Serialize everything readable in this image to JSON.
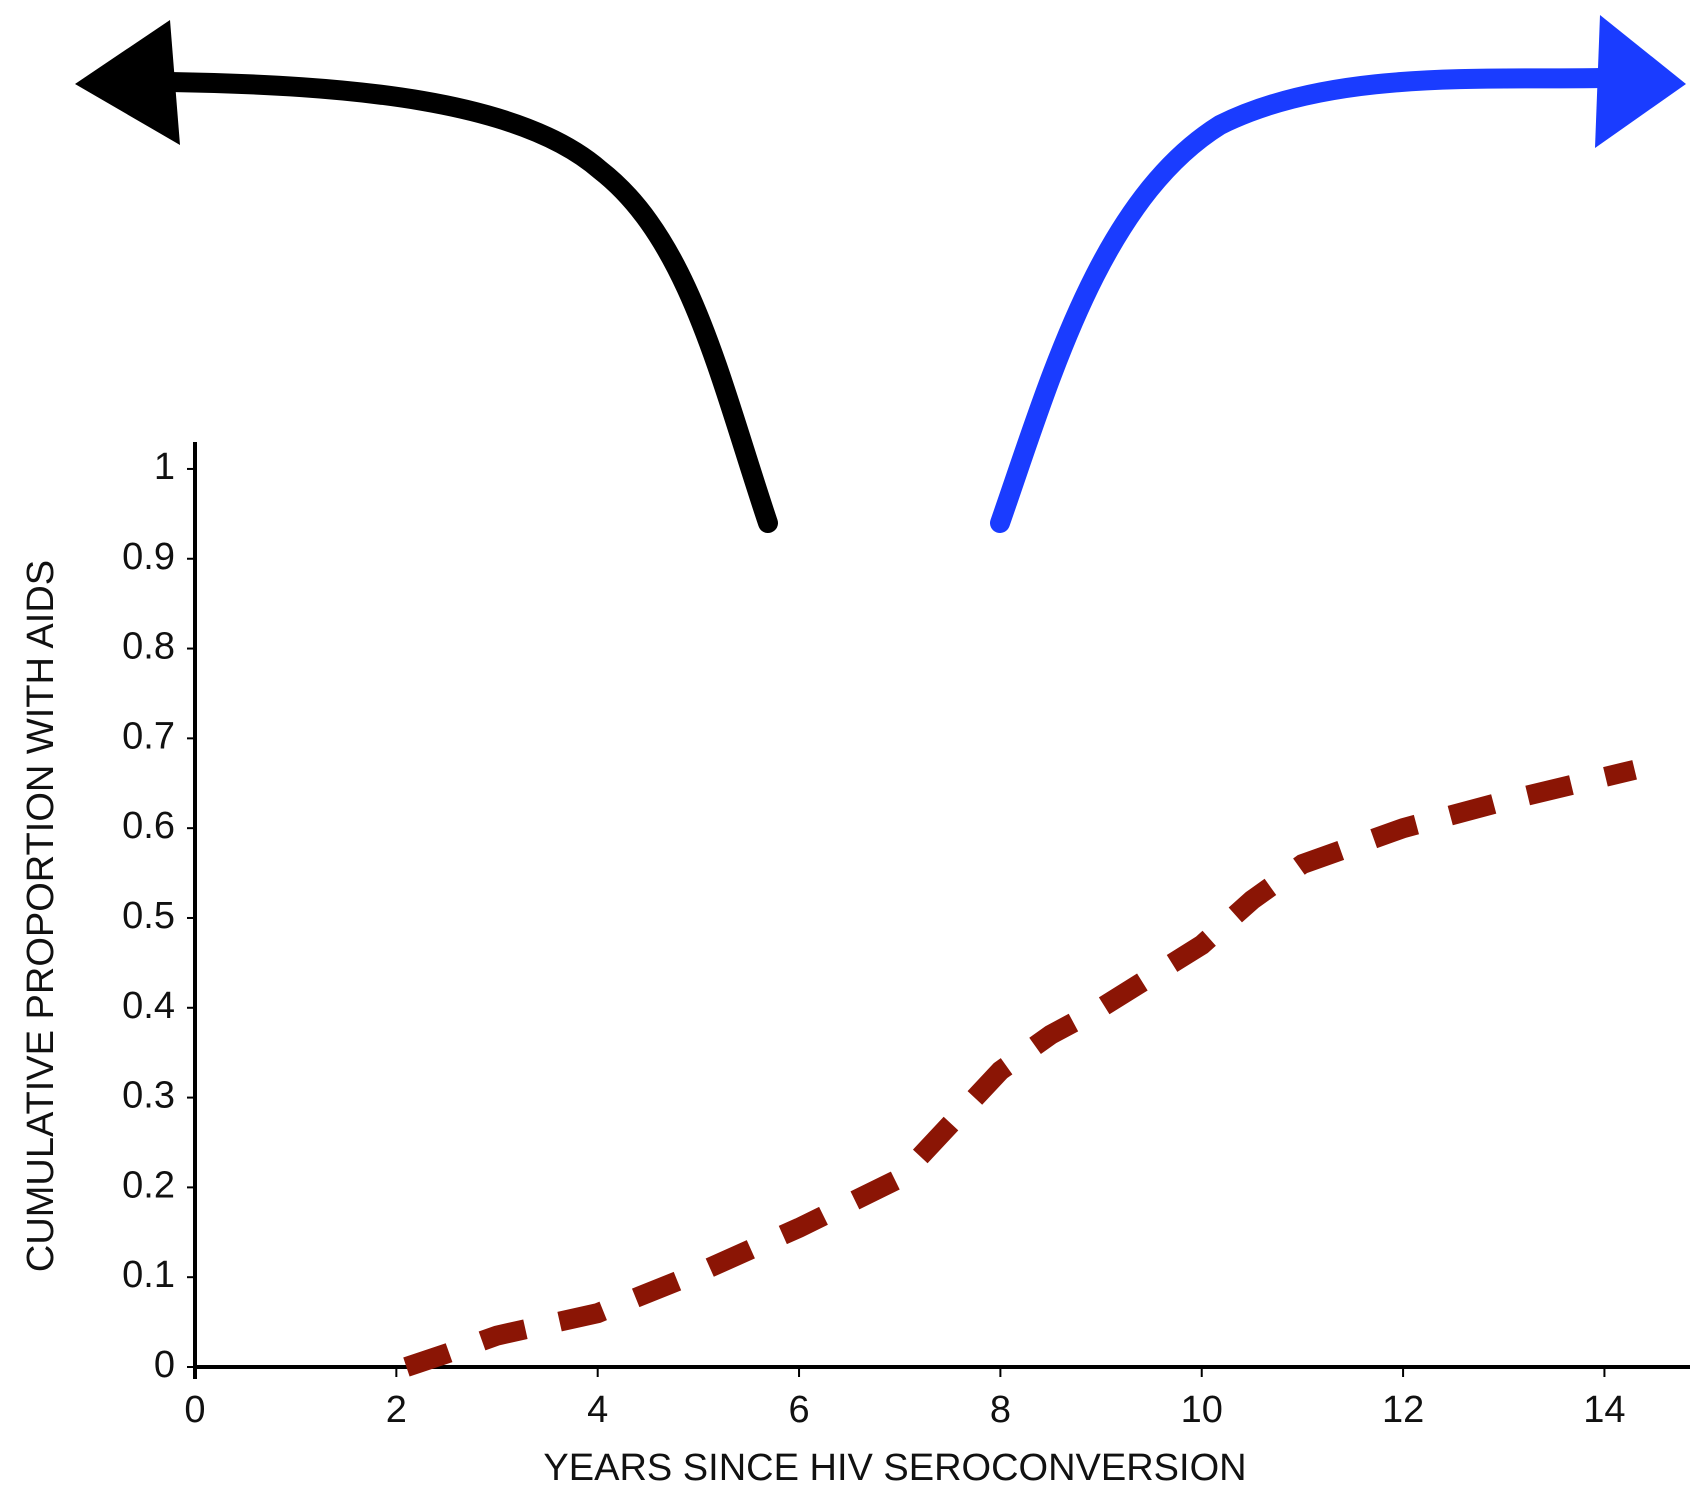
{
  "chart_data": {
    "type": "line",
    "x_label": "YEARS SINCE HIV SEROCONVERSION",
    "y_label": "CUMULATIVE PROPORTION WITH AIDS",
    "x": [
      2.1,
      2.5,
      3,
      4,
      5,
      6,
      7,
      7.5,
      8,
      8.5,
      9,
      10,
      10.5,
      11,
      12,
      13,
      14.3
    ],
    "values": [
      0,
      0.015,
      0.035,
      0.06,
      0.105,
      0.155,
      0.21,
      0.27,
      0.33,
      0.37,
      0.4,
      0.47,
      0.52,
      0.56,
      0.6,
      0.63,
      0.665
    ],
    "color": "#8b1505",
    "xlim": [
      0,
      14.85
    ],
    "xticks": [
      0,
      2,
      4,
      6,
      8,
      10,
      12,
      14
    ],
    "ylim": [
      0,
      1.03
    ],
    "yticks": [
      0,
      0.1,
      0.2,
      0.3,
      0.4,
      0.5,
      0.6,
      0.7,
      0.8,
      0.9,
      1
    ]
  }
}
